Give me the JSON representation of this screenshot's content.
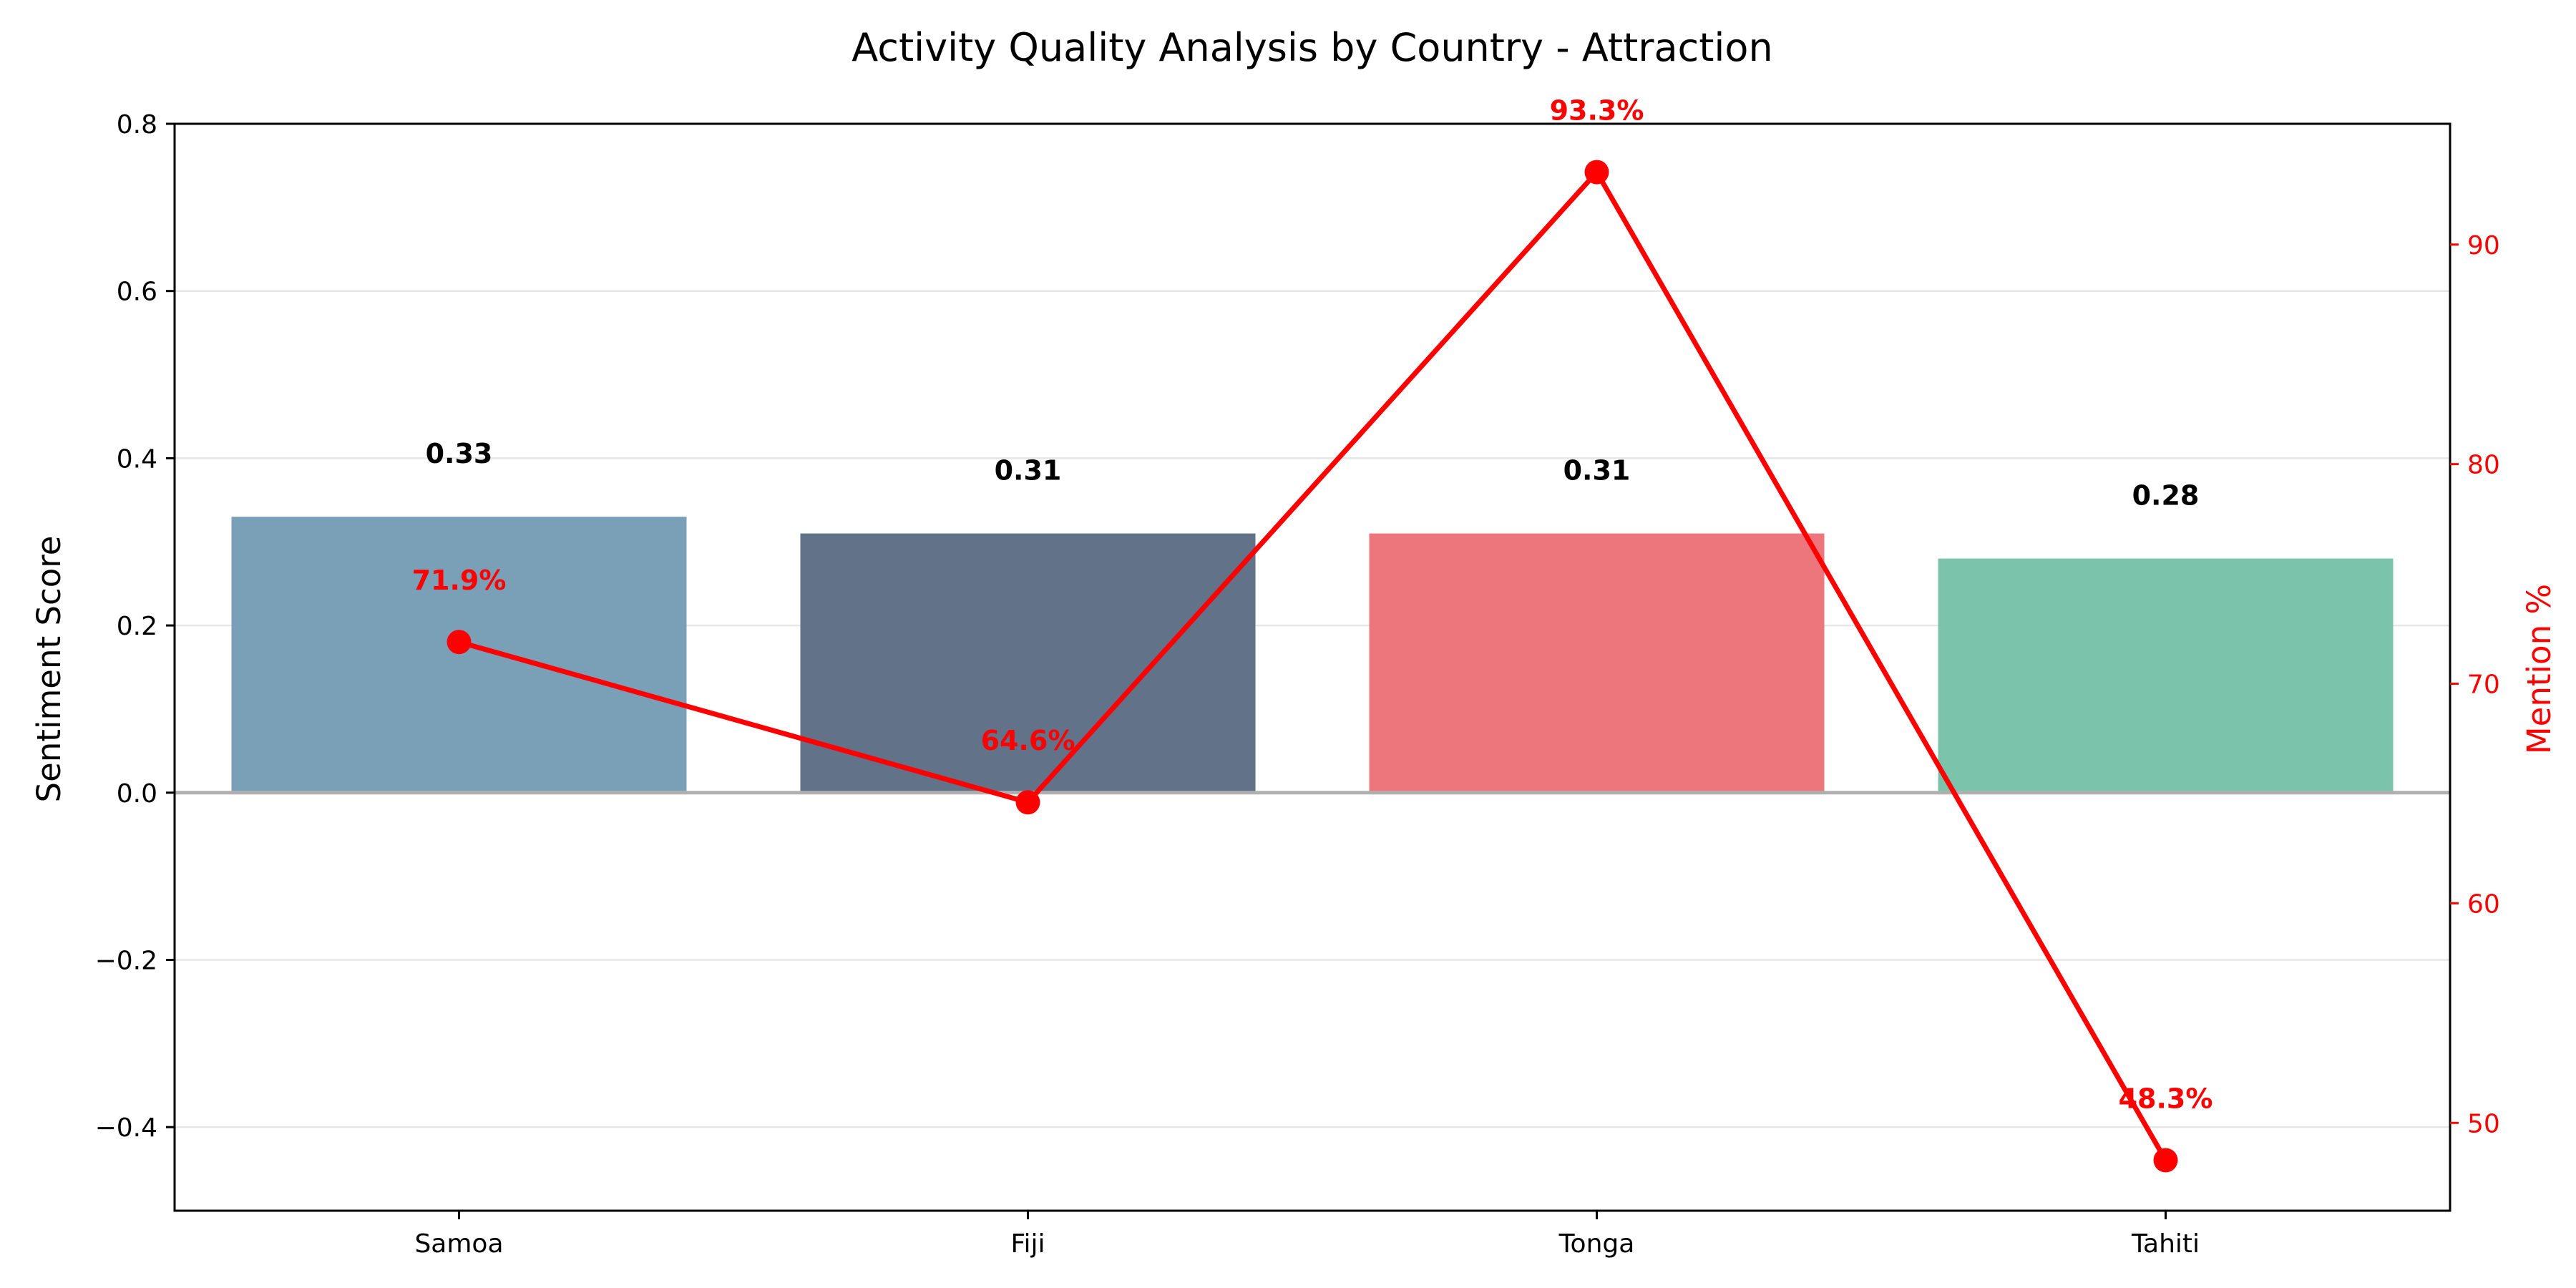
{
  "chart_data": {
    "type": "bar",
    "title": "Activity Quality Analysis by Country - Attraction",
    "categories": [
      "Samoa",
      "Fiji",
      "Tonga",
      "Tahiti"
    ],
    "series": [
      {
        "name": "Sentiment Score",
        "type": "bar",
        "axis": "left",
        "values": [
          0.33,
          0.31,
          0.31,
          0.28
        ],
        "labels": [
          "0.33",
          "0.31",
          "0.31",
          "0.28"
        ],
        "colors": [
          "#7aa0b8",
          "#627289",
          "#ed757c",
          "#7bc3ab"
        ]
      },
      {
        "name": "Mention %",
        "type": "line",
        "axis": "right",
        "values": [
          71.9,
          64.6,
          93.3,
          48.3
        ],
        "labels": [
          "71.9%",
          "64.6%",
          "93.3%",
          "48.3%"
        ],
        "color": "#ff0000"
      }
    ],
    "ylabel": "Sentiment Score",
    "ylim": [
      -0.5,
      0.8
    ],
    "yticks": [
      -0.4,
      -0.2,
      0.0,
      0.2,
      0.4,
      0.6,
      0.8
    ],
    "ytick_labels": [
      "−0.4",
      "−0.2",
      "0.0",
      "0.2",
      "0.4",
      "0.6",
      "0.8"
    ],
    "y2label": "Mention %",
    "y2lim": [
      46.0,
      95.5
    ],
    "y2ticks": [
      50,
      60,
      70,
      80,
      90
    ],
    "y2tick_labels": [
      "50",
      "60",
      "70",
      "80",
      "90"
    ],
    "grid": "horizontal",
    "zero_line": true,
    "legend": "none",
    "colors": {
      "axis": "#000000",
      "grid": "#e6e6e6",
      "zero_line": "#b0b0b0",
      "line": "#ff0000",
      "bar_label": "#000000"
    }
  }
}
